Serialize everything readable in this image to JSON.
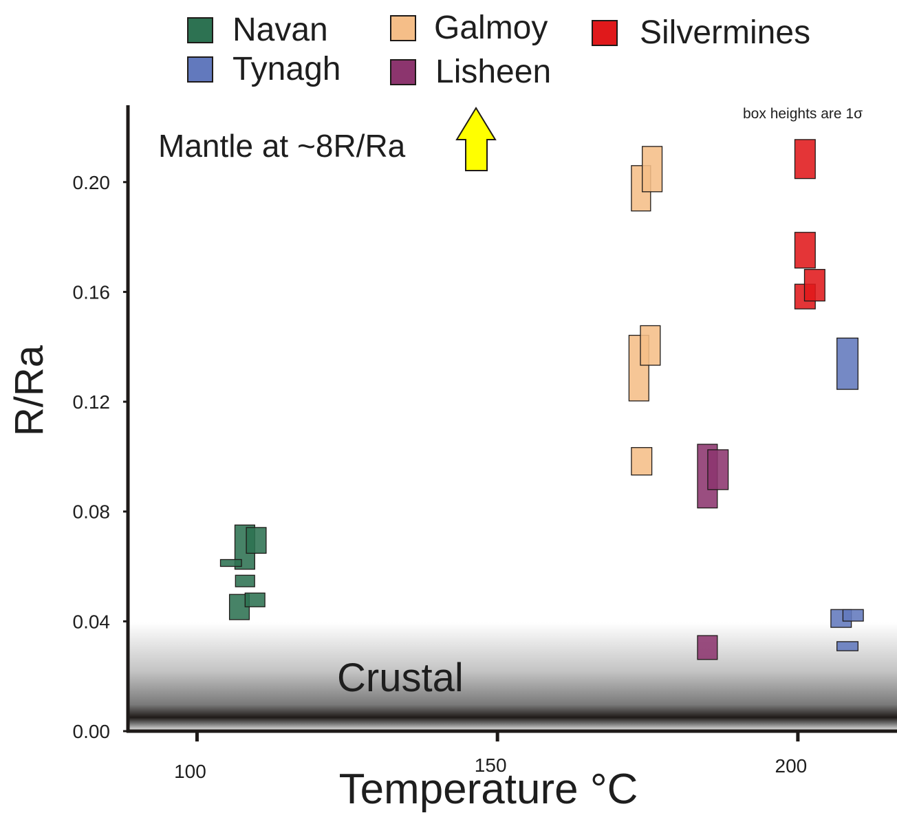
{
  "chart_data": {
    "type": "scatter",
    "xlabel": "Temperature °C",
    "ylabel": "R/Ra",
    "xlim": [
      88.5,
      216.5
    ],
    "ylim": [
      0,
      0.228
    ],
    "x_ticks": [
      100,
      150,
      200
    ],
    "y_ticks": [
      "0.00",
      "0.04",
      "0.08",
      "0.12",
      "0.16",
      "0.20"
    ],
    "legend_position": "top",
    "note": "box heights are 1σ",
    "annotations": {
      "mantle": "Mantle at ~8R/Ra",
      "crustal": "Crustal"
    },
    "series": [
      {
        "name": "Navan",
        "color": "#2d7252",
        "boxes": [
          {
            "x_min": 106.3,
            "x_max": 109.6,
            "y_min": 0.059,
            "y_max": 0.0751
          },
          {
            "x_min": 108.2,
            "x_max": 111.5,
            "y_min": 0.0648,
            "y_max": 0.0742
          },
          {
            "x_min": 103.9,
            "x_max": 107.4,
            "y_min": 0.06,
            "y_max": 0.0625
          },
          {
            "x_min": 106.4,
            "x_max": 109.6,
            "y_min": 0.0526,
            "y_max": 0.0568
          },
          {
            "x_min": 105.4,
            "x_max": 108.7,
            "y_min": 0.0406,
            "y_max": 0.0498
          },
          {
            "x_min": 108.0,
            "x_max": 111.3,
            "y_min": 0.0453,
            "y_max": 0.0503
          }
        ]
      },
      {
        "name": "Galmoy",
        "color": "#f5be88",
        "boxes": [
          {
            "x_min": 172.3,
            "x_max": 175.5,
            "y_min": 0.1895,
            "y_max": 0.206
          },
          {
            "x_min": 174.1,
            "x_max": 177.4,
            "y_min": 0.1965,
            "y_max": 0.213
          },
          {
            "x_min": 171.9,
            "x_max": 175.2,
            "y_min": 0.1203,
            "y_max": 0.1442
          },
          {
            "x_min": 173.8,
            "x_max": 177.1,
            "y_min": 0.1333,
            "y_max": 0.1477
          },
          {
            "x_min": 172.3,
            "x_max": 175.7,
            "y_min": 0.0933,
            "y_max": 0.1033
          }
        ]
      },
      {
        "name": "Silvermines",
        "color": "#e0191b",
        "boxes": [
          {
            "x_min": 199.5,
            "x_max": 202.9,
            "y_min": 0.2013,
            "y_max": 0.2155
          },
          {
            "x_min": 199.5,
            "x_max": 202.9,
            "y_min": 0.1687,
            "y_max": 0.1817
          },
          {
            "x_min": 199.5,
            "x_max": 202.9,
            "y_min": 0.1538,
            "y_max": 0.1628
          },
          {
            "x_min": 201.1,
            "x_max": 204.5,
            "y_min": 0.1567,
            "y_max": 0.1682
          }
        ]
      },
      {
        "name": "Tynagh",
        "color": "#6279bd",
        "boxes": [
          {
            "x_min": 206.5,
            "x_max": 210.0,
            "y_min": 0.1245,
            "y_max": 0.1432
          },
          {
            "x_min": 205.5,
            "x_max": 208.9,
            "y_min": 0.0378,
            "y_max": 0.0443
          },
          {
            "x_min": 207.5,
            "x_max": 210.9,
            "y_min": 0.0401,
            "y_max": 0.0443
          },
          {
            "x_min": 206.5,
            "x_max": 210.0,
            "y_min": 0.0293,
            "y_max": 0.0326
          }
        ]
      },
      {
        "name": "Lisheen",
        "color": "#8c356e",
        "boxes": [
          {
            "x_min": 183.3,
            "x_max": 186.6,
            "y_min": 0.0813,
            "y_max": 0.1045
          },
          {
            "x_min": 185.0,
            "x_max": 188.4,
            "y_min": 0.088,
            "y_max": 0.1025
          },
          {
            "x_min": 183.3,
            "x_max": 186.6,
            "y_min": 0.0261,
            "y_max": 0.0348
          }
        ]
      }
    ]
  }
}
